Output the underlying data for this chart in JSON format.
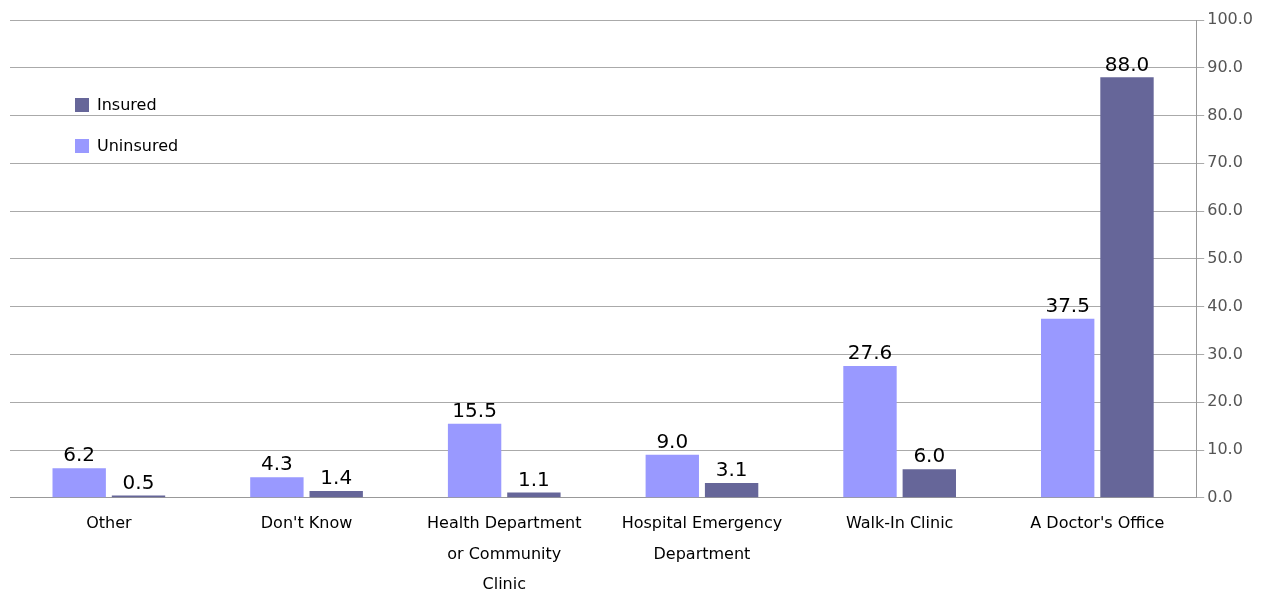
{
  "chart_data": {
    "type": "bar",
    "categories": [
      "Other",
      "Don't Know",
      "Health Department or Community Clinic",
      "Hospital Emergency Department",
      "Walk-In Clinic",
      "A Doctor's Office"
    ],
    "series": [
      {
        "name": "Uninsured",
        "color": "#9999ff",
        "values": [
          6.2,
          4.3,
          15.5,
          9.0,
          27.6,
          37.5
        ],
        "value_labels": [
          "6.2",
          "4.3",
          "15.5",
          "9.0",
          "27.6",
          "37.5"
        ]
      },
      {
        "name": "Insured",
        "color": "#666699",
        "values": [
          0.5,
          1.4,
          1.1,
          3.1,
          6.0,
          88.0
        ],
        "value_labels": [
          "0.5",
          "1.4",
          "1.1",
          "3.1",
          "6.0",
          "88.0"
        ]
      }
    ],
    "ylim": [
      0,
      100
    ],
    "yticks": [
      {
        "value": 0,
        "label": "0.0"
      },
      {
        "value": 10,
        "label": "10.0"
      },
      {
        "value": 20,
        "label": "20.0"
      },
      {
        "value": 30,
        "label": "30.0"
      },
      {
        "value": 40,
        "label": "40.0"
      },
      {
        "value": 50,
        "label": "50.0"
      },
      {
        "value": 60,
        "label": "60.0"
      },
      {
        "value": 70,
        "label": "70.0"
      },
      {
        "value": 80,
        "label": "80.0"
      },
      {
        "value": 90,
        "label": "90.0"
      },
      {
        "value": 100,
        "label": "100.0"
      }
    ],
    "grid": "y",
    "legend": "top left"
  }
}
